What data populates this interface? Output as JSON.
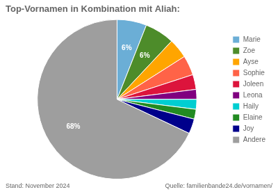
{
  "chart_data": {
    "type": "pie",
    "title": "Top-Vornamen in Kombination mit Aliah:",
    "categories": [
      "Marie",
      "Zoe",
      "Ayse",
      "Sophie",
      "Joleen",
      "Leona",
      "Haily",
      "Elaine",
      "Joy",
      "Andere"
    ],
    "values": [
      6,
      6,
      4,
      4,
      3,
      2,
      2,
      2,
      3,
      68
    ],
    "value_labels": [
      "6%",
      "6%",
      null,
      null,
      null,
      null,
      null,
      null,
      null,
      "68%"
    ],
    "data_labels": true,
    "colors": [
      "#6BAED6",
      "#4D8C2A",
      "#FFA500",
      "#FF6347",
      "#DC143C",
      "#800080",
      "#00CED1",
      "#228B22",
      "#00008B",
      "#9E9E9E"
    ],
    "legend": "right",
    "annotations": [
      "Stand: November 2024",
      "Quelle: familienbande24.de/vornamen/"
    ]
  }
}
